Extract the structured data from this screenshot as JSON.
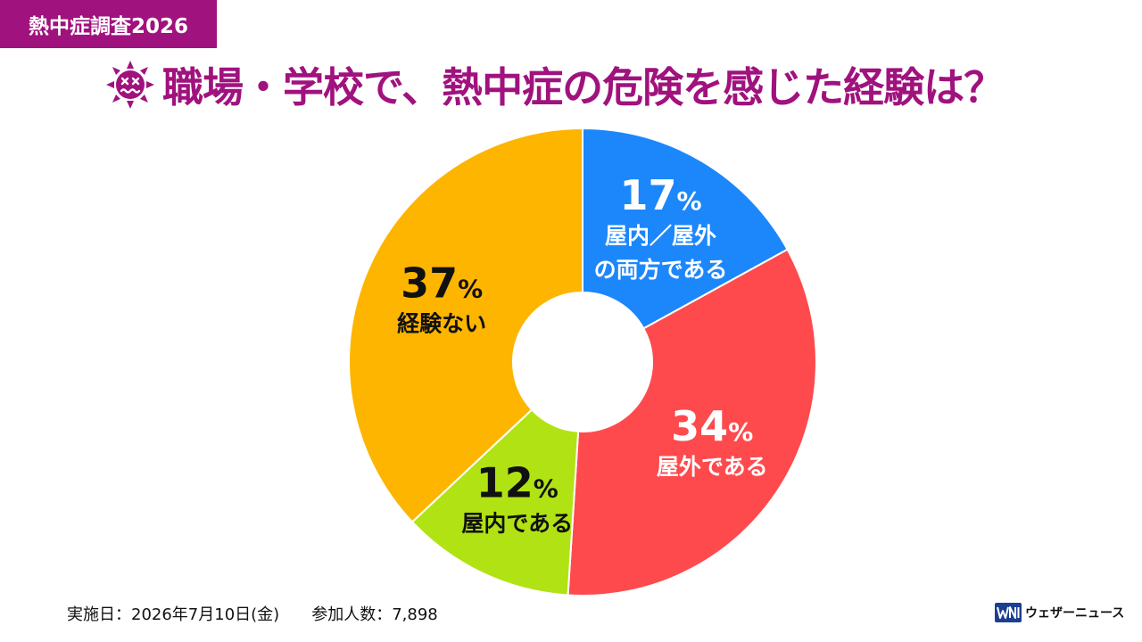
{
  "header": {
    "tag": "熱中症調査2026",
    "title": "職場・学校で、熱中症の危険を感じた経験は？"
  },
  "colors": {
    "accent": "#a0127e",
    "title": "#a0127e"
  },
  "icons": {
    "title_icon": "dizzy-sun-icon",
    "brand_logo": "wni-logo-icon"
  },
  "chart_data": {
    "type": "pie",
    "donut": true,
    "start": "12 o'clock, clockwise",
    "slices": [
      {
        "pct": "17",
        "value": 17,
        "label": [
          "屋内／屋外",
          "の両方である"
        ],
        "color": "#1c87fb",
        "text_color": "#ffffff"
      },
      {
        "pct": "34",
        "value": 34,
        "label": [
          "屋外である"
        ],
        "color": "#fe4a4d",
        "text_color": "#ffffff"
      },
      {
        "pct": "12",
        "value": 12,
        "label": [
          "屋内である"
        ],
        "color": "#b1e314",
        "text_color": "#111111"
      },
      {
        "pct": "37",
        "value": 37,
        "label": [
          "経験ない"
        ],
        "color": "#fdb500",
        "text_color": "#111111"
      }
    ],
    "percent_sign": "%"
  },
  "footer": {
    "date": "実施日：2026年7月10日(金)",
    "participants": "参加人数：7,898"
  },
  "brand": {
    "name": "ウェザーニュース"
  }
}
